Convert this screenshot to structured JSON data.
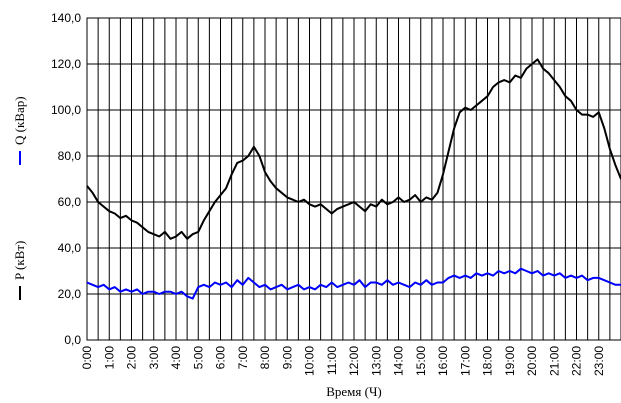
{
  "chart_data": {
    "type": "line",
    "x_label": "Время (Ч)",
    "legend": "left-vertical",
    "grid": true,
    "xlim": [
      0,
      24
    ],
    "xticks": [
      {
        "value": 0,
        "label": "0:00"
      },
      {
        "value": 1,
        "label": "1:00"
      },
      {
        "value": 2,
        "label": "2:00"
      },
      {
        "value": 3,
        "label": "3:00"
      },
      {
        "value": 4,
        "label": "4:00"
      },
      {
        "value": 5,
        "label": "5:00"
      },
      {
        "value": 6,
        "label": "6:00"
      },
      {
        "value": 7,
        "label": "7:00"
      },
      {
        "value": 8,
        "label": "8:00"
      },
      {
        "value": 9,
        "label": "9:00"
      },
      {
        "value": 10,
        "label": "10:00"
      },
      {
        "value": 11,
        "label": "11:00"
      },
      {
        "value": 12,
        "label": "12:00"
      },
      {
        "value": 13,
        "label": "13:00"
      },
      {
        "value": 14,
        "label": "14:00"
      },
      {
        "value": 15,
        "label": "15:00"
      },
      {
        "value": 16,
        "label": "16:00"
      },
      {
        "value": 17,
        "label": "17:00"
      },
      {
        "value": 18,
        "label": "18:00"
      },
      {
        "value": 19,
        "label": "19:00"
      },
      {
        "value": 20,
        "label": "20:00"
      },
      {
        "value": 21,
        "label": "21:00"
      },
      {
        "value": 22,
        "label": "22:00"
      },
      {
        "value": 23,
        "label": "23:00"
      }
    ],
    "xminor_ticks": [
      0.5,
      1.5,
      2.5,
      3.5,
      4.5,
      5.5,
      6.5,
      7.5,
      8.5,
      9.5,
      10.5,
      11.5,
      12.5,
      13.5,
      14.5,
      15.5,
      16.5,
      17.5,
      18.5,
      19.5,
      20.5,
      21.5,
      22.5,
      23.5
    ],
    "ylim": [
      0,
      140
    ],
    "yticks": [
      {
        "value": 0,
        "label": "0,0"
      },
      {
        "value": 20,
        "label": "20,0"
      },
      {
        "value": 40,
        "label": "40,0"
      },
      {
        "value": 60,
        "label": "60,0"
      },
      {
        "value": 80,
        "label": "80,0"
      },
      {
        "value": 100,
        "label": "100,0"
      },
      {
        "value": 120,
        "label": "120,0"
      },
      {
        "value": 140,
        "label": "140,0"
      }
    ],
    "x": [
      0,
      0.25,
      0.5,
      0.75,
      1,
      1.25,
      1.5,
      1.75,
      2,
      2.25,
      2.5,
      2.75,
      3,
      3.25,
      3.5,
      3.75,
      4,
      4.25,
      4.5,
      4.75,
      5,
      5.25,
      5.5,
      5.75,
      6,
      6.25,
      6.5,
      6.75,
      7,
      7.25,
      7.5,
      7.75,
      8,
      8.25,
      8.5,
      8.75,
      9,
      9.25,
      9.5,
      9.75,
      10,
      10.25,
      10.5,
      10.75,
      11,
      11.25,
      11.5,
      11.75,
      12,
      12.25,
      12.5,
      12.75,
      13,
      13.25,
      13.5,
      13.75,
      14,
      14.25,
      14.5,
      14.75,
      15,
      15.25,
      15.5,
      15.75,
      16,
      16.25,
      16.5,
      16.75,
      17,
      17.25,
      17.5,
      17.75,
      18,
      18.25,
      18.5,
      18.75,
      19,
      19.25,
      19.5,
      19.75,
      20,
      20.25,
      20.5,
      20.75,
      21,
      21.25,
      21.5,
      21.75,
      22,
      22.25,
      22.5,
      22.75,
      23,
      23.25,
      23.5,
      23.75,
      24
    ],
    "series": [
      {
        "name": "P (кВт)",
        "color": "#000000",
        "values": [
          67,
          64,
          60,
          58,
          56,
          55,
          53,
          54,
          52,
          51,
          49,
          47,
          46,
          45,
          47,
          44,
          45,
          47,
          44,
          46,
          47,
          52,
          56,
          60,
          63,
          66,
          72,
          77,
          78,
          80,
          84,
          80,
          73,
          69,
          66,
          64,
          62,
          61,
          60,
          61,
          59,
          58,
          59,
          57,
          55,
          57,
          58,
          59,
          60,
          58,
          56,
          59,
          58,
          61,
          59,
          60,
          62,
          60,
          61,
          63,
          60,
          62,
          61,
          64,
          72,
          82,
          92,
          99,
          101,
          100,
          102,
          104,
          106,
          110,
          112,
          113,
          112,
          115,
          114,
          118,
          120,
          122,
          118,
          116,
          113,
          110,
          106,
          104,
          100,
          98,
          98,
          97,
          99,
          92,
          83,
          76,
          70
        ]
      },
      {
        "name": "Q (кВар)",
        "color": "#0000ff",
        "values": [
          25,
          24,
          23,
          24,
          22,
          23,
          21,
          22,
          21,
          22,
          20,
          21,
          21,
          20,
          21,
          21,
          20,
          21,
          19,
          18,
          23,
          24,
          23,
          25,
          24,
          25,
          23,
          26,
          24,
          27,
          25,
          23,
          24,
          22,
          23,
          24,
          22,
          23,
          24,
          22,
          23,
          22,
          24,
          23,
          25,
          23,
          24,
          25,
          24,
          26,
          23,
          25,
          25,
          24,
          26,
          24,
          25,
          24,
          23,
          25,
          24,
          26,
          24,
          25,
          25,
          27,
          28,
          27,
          28,
          27,
          29,
          28,
          29,
          28,
          30,
          29,
          30,
          29,
          31,
          30,
          29,
          30,
          28,
          29,
          28,
          29,
          27,
          28,
          27,
          28,
          26,
          27,
          27,
          26,
          25,
          24,
          24
        ]
      }
    ]
  }
}
